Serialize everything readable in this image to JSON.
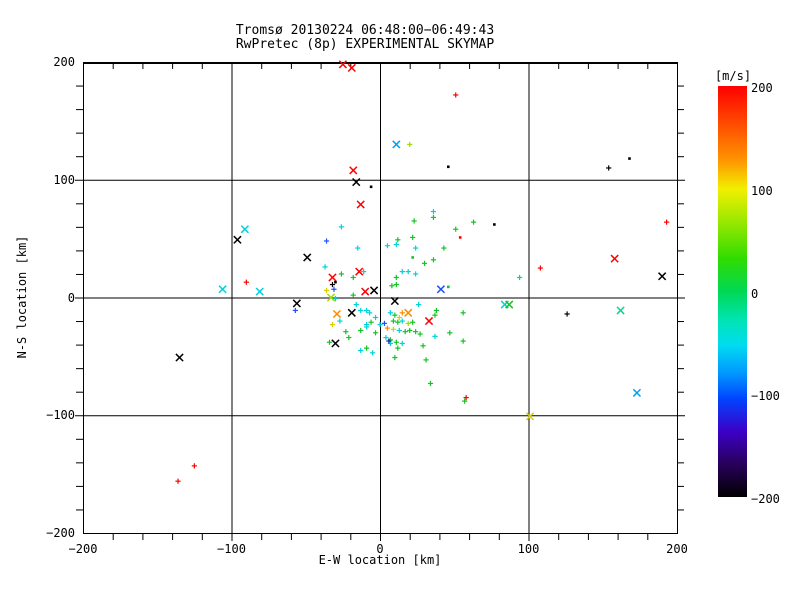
{
  "window": {
    "background": "#ffffff"
  },
  "chart_data": {
    "type": "scatter",
    "title": "Tromsø 20130224 06:48:00−06:49:43",
    "subtitle": "RwPretec (8p) EXPERIMENTAL SKYMAP",
    "xlabel": "E-W location [km]",
    "ylabel": "N-S location [km]",
    "xlim": [
      -200,
      200
    ],
    "ylim": [
      -200,
      200
    ],
    "xticks": [
      -200,
      -100,
      0,
      100,
      200
    ],
    "yticks": [
      200,
      100,
      0,
      -100,
      -200
    ],
    "grid": [
      -100,
      0,
      100
    ],
    "minor_tick_step": 20,
    "grid_on": true,
    "colorbar": {
      "label": "[m/s]",
      "min": -200,
      "max": 200,
      "ticks": [
        200,
        100,
        0,
        -100,
        -200
      ],
      "gradient": [
        [
          "0%",
          "#ff0000"
        ],
        [
          "10%",
          "#ff5200"
        ],
        [
          "18%",
          "#ff9400"
        ],
        [
          "25%",
          "#f2ef00"
        ],
        [
          "33%",
          "#9ae800"
        ],
        [
          "42%",
          "#30dc00"
        ],
        [
          "50%",
          "#00d855"
        ],
        [
          "57%",
          "#00e4b4"
        ],
        [
          "63%",
          "#00dcf0"
        ],
        [
          "70%",
          "#0096ff"
        ],
        [
          "76%",
          "#0045ff"
        ],
        [
          "84%",
          "#3c00c8"
        ],
        [
          "92%",
          "#28005a"
        ],
        [
          "100%",
          "#000000"
        ]
      ]
    },
    "palette": {
      "r": "#ff0000",
      "o": "#ff8c00",
      "y": "#d8cf00",
      "yg": "#a0dc00",
      "g": "#12c424",
      "sg": "#00d88c",
      "c": "#00d2dc",
      "sb": "#00a0f0",
      "b": "#1e50ff",
      "db": "#2222bb",
      "k": "#000000"
    },
    "points_format": [
      "x_km",
      "y_km",
      "color_key",
      "marker"
    ],
    "points": [
      [
        -25,
        198,
        "r",
        "x"
      ],
      [
        -19,
        195,
        "r",
        "x"
      ],
      [
        -18,
        108,
        "r",
        "x"
      ],
      [
        -16,
        98,
        "k",
        "x"
      ],
      [
        -13,
        79,
        "r",
        "x"
      ],
      [
        11,
        130,
        "sb",
        "x"
      ],
      [
        20,
        130,
        "yg",
        "+"
      ],
      [
        -91,
        58,
        "c",
        "x"
      ],
      [
        -96,
        49,
        "k",
        "x"
      ],
      [
        -106,
        7,
        "c",
        "x"
      ],
      [
        -81,
        5,
        "c",
        "x"
      ],
      [
        -135,
        -51,
        "k",
        "x"
      ],
      [
        -49,
        34,
        "k",
        "x"
      ],
      [
        -14,
        22,
        "r",
        "x"
      ],
      [
        -32,
        17,
        "r",
        "x"
      ],
      [
        -10,
        5,
        "r",
        "x"
      ],
      [
        -4,
        6,
        "k",
        "x"
      ],
      [
        -33,
        0,
        "yg",
        "x"
      ],
      [
        -56,
        -5,
        "k",
        "x"
      ],
      [
        -29,
        -14,
        "o",
        "x"
      ],
      [
        -19,
        -13,
        "k",
        "x"
      ],
      [
        -30,
        -39,
        "k",
        "x"
      ],
      [
        41,
        7,
        "b",
        "x"
      ],
      [
        10,
        -3,
        "k",
        "x"
      ],
      [
        19,
        -13,
        "o",
        "x"
      ],
      [
        33,
        -20,
        "r",
        "x"
      ],
      [
        84,
        -6,
        "c",
        "x"
      ],
      [
        87,
        -6,
        "g",
        "x"
      ],
      [
        162,
        -11,
        "sg",
        "x"
      ],
      [
        158,
        33,
        "r",
        "x"
      ],
      [
        190,
        18,
        "k",
        "x"
      ],
      [
        173,
        -81,
        "sb",
        "x"
      ],
      [
        101,
        -101,
        "y",
        "x"
      ],
      [
        51,
        172,
        "r",
        "+"
      ],
      [
        36,
        73,
        "c",
        "+"
      ],
      [
        46,
        111,
        "k",
        "."
      ],
      [
        -6,
        94,
        "k",
        "."
      ],
      [
        154,
        110,
        "k",
        "+"
      ],
      [
        168,
        118,
        "k",
        "."
      ],
      [
        193,
        64,
        "r",
        "+"
      ],
      [
        77,
        62,
        "k",
        "."
      ],
      [
        94,
        17,
        "sg",
        "+"
      ],
      [
        108,
        25,
        "r",
        "+"
      ],
      [
        126,
        -14,
        "k",
        "+"
      ],
      [
        -90,
        13,
        "r",
        "+"
      ],
      [
        -125,
        -143,
        "r",
        "+"
      ],
      [
        -136,
        -156,
        "r",
        "+"
      ],
      [
        34,
        -73,
        "g",
        "+"
      ],
      [
        58,
        -85,
        "r",
        "+"
      ],
      [
        57,
        -88,
        "g",
        "+"
      ],
      [
        -26,
        60,
        "c",
        "+"
      ],
      [
        -36,
        48,
        "b",
        "+"
      ],
      [
        -15,
        42,
        "c",
        "+"
      ],
      [
        -37,
        26,
        "c",
        "+"
      ],
      [
        -26,
        20,
        "g",
        "+"
      ],
      [
        -11,
        22,
        "c",
        "+"
      ],
      [
        -18,
        17,
        "g",
        "+"
      ],
      [
        -30,
        13,
        "k",
        "."
      ],
      [
        -31,
        7,
        "b",
        "+"
      ],
      [
        -36,
        6,
        "y",
        "+"
      ],
      [
        -30,
        -1,
        "c",
        "+"
      ],
      [
        -18,
        2,
        "g",
        "+"
      ],
      [
        -57,
        -11,
        "b",
        "+"
      ],
      [
        -16,
        -6,
        "c",
        "+"
      ],
      [
        -13,
        -11,
        "c",
        "+"
      ],
      [
        -9,
        -11,
        "c",
        "+"
      ],
      [
        -7,
        -13,
        "c",
        "+"
      ],
      [
        -32,
        -23,
        "y",
        "+"
      ],
      [
        -27,
        -20,
        "c",
        "+"
      ],
      [
        -23,
        -29,
        "g",
        "+"
      ],
      [
        -34,
        -38,
        "g",
        "+"
      ],
      [
        -13,
        -28,
        "g",
        "+"
      ],
      [
        -9,
        -23,
        "c",
        "+"
      ],
      [
        -6,
        -21,
        "g",
        "+"
      ],
      [
        -3,
        -17,
        "c",
        "+"
      ],
      [
        -21,
        -34,
        "g",
        "+"
      ],
      [
        -13,
        -45,
        "c",
        "+"
      ],
      [
        -9,
        -43,
        "g",
        "+"
      ],
      [
        -5,
        -47,
        "c",
        "+"
      ],
      [
        -3,
        -30,
        "g",
        "+"
      ],
      [
        0,
        -23,
        "c",
        "+"
      ],
      [
        -32,
        11,
        "k",
        "+"
      ],
      [
        -9,
        -25,
        "c",
        "+"
      ],
      [
        23,
        65,
        "g",
        "+"
      ],
      [
        36,
        68,
        "g",
        "+"
      ],
      [
        63,
        64,
        "g",
        "+"
      ],
      [
        51,
        58,
        "g",
        "+"
      ],
      [
        54,
        51,
        "r",
        "."
      ],
      [
        12,
        49,
        "g",
        "+"
      ],
      [
        22,
        51,
        "g",
        "+"
      ],
      [
        5,
        44,
        "c",
        "+"
      ],
      [
        11,
        45,
        "c",
        "+"
      ],
      [
        24,
        42,
        "c",
        "+"
      ],
      [
        43,
        42,
        "g",
        "+"
      ],
      [
        22,
        34,
        "g",
        "."
      ],
      [
        30,
        29,
        "g",
        "+"
      ],
      [
        36,
        32,
        "g",
        "+"
      ],
      [
        15,
        22,
        "c",
        "+"
      ],
      [
        19,
        22,
        "c",
        "+"
      ],
      [
        24,
        20,
        "c",
        "+"
      ],
      [
        11,
        17,
        "g",
        "+"
      ],
      [
        8,
        10,
        "g",
        "+"
      ],
      [
        11,
        11,
        "g",
        "+"
      ],
      [
        46,
        9,
        "g",
        "."
      ],
      [
        26,
        -6,
        "c",
        "+"
      ],
      [
        38,
        -11,
        "g",
        "+"
      ],
      [
        37,
        -15,
        "g",
        "+"
      ],
      [
        56,
        -13,
        "g",
        "+"
      ],
      [
        3,
        -22,
        "b",
        "+"
      ],
      [
        7,
        -13,
        "c",
        "+"
      ],
      [
        10,
        -15,
        "g",
        "+"
      ],
      [
        13,
        -17,
        "y",
        "+"
      ],
      [
        9,
        -20,
        "g",
        "+"
      ],
      [
        12,
        -21,
        "g",
        "+"
      ],
      [
        15,
        -20,
        "c",
        "+"
      ],
      [
        19,
        -22,
        "yg",
        "+"
      ],
      [
        22,
        -21,
        "g",
        "+"
      ],
      [
        5,
        -26,
        "o",
        "+"
      ],
      [
        9,
        -27,
        "y",
        "+"
      ],
      [
        13,
        -28,
        "c",
        "+"
      ],
      [
        17,
        -29,
        "g",
        "+"
      ],
      [
        20,
        -28,
        "g",
        "+"
      ],
      [
        24,
        -29,
        "g",
        "+"
      ],
      [
        27,
        -31,
        "g",
        "+"
      ],
      [
        4,
        -34,
        "c",
        "+"
      ],
      [
        7,
        -36,
        "g",
        "+"
      ],
      [
        11,
        -38,
        "g",
        "+"
      ],
      [
        15,
        -39,
        "c",
        "+"
      ],
      [
        7,
        -39,
        "c",
        "+"
      ],
      [
        12,
        -43,
        "g",
        "+"
      ],
      [
        29,
        -41,
        "g",
        "+"
      ],
      [
        37,
        -33,
        "c",
        "+"
      ],
      [
        47,
        -30,
        "g",
        "+"
      ],
      [
        56,
        -37,
        "g",
        "+"
      ],
      [
        10,
        -51,
        "g",
        "+"
      ],
      [
        31,
        -53,
        "g",
        "+"
      ],
      [
        6,
        -37,
        "db",
        "+"
      ],
      [
        15,
        -13,
        "o",
        "+"
      ]
    ]
  }
}
